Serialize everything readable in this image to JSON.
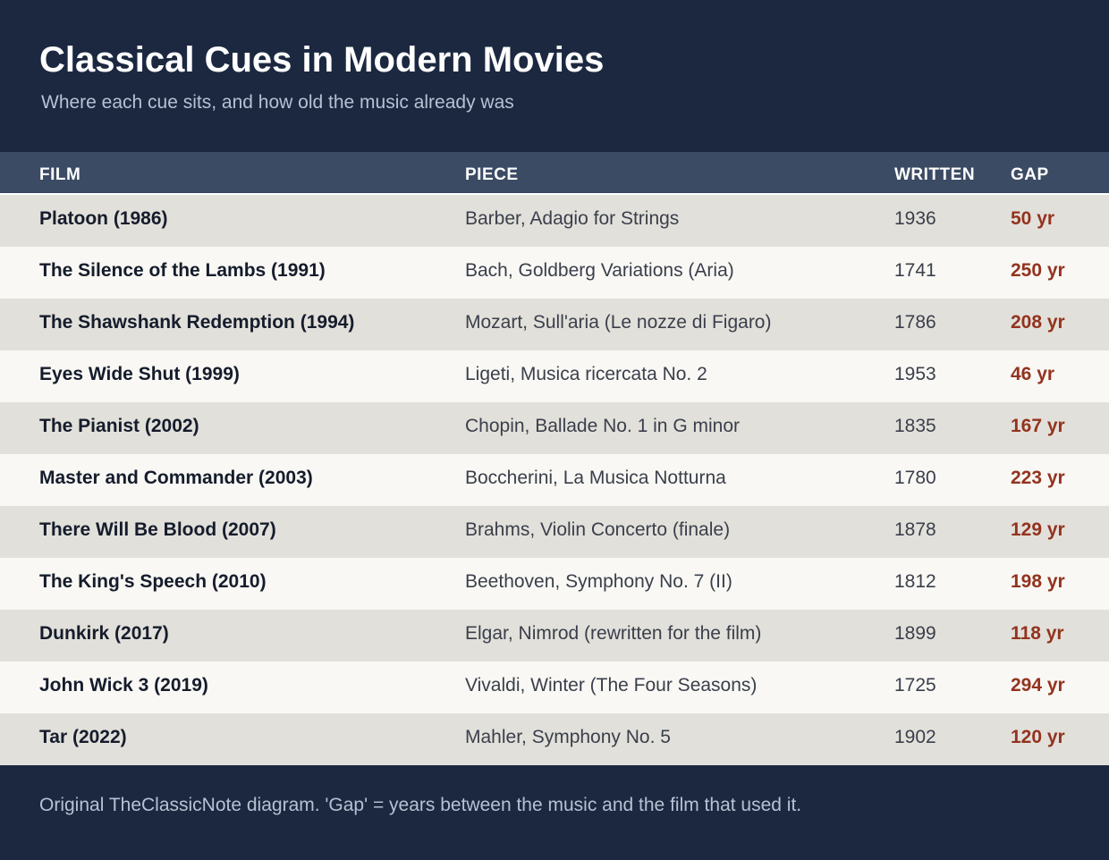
{
  "title": "Classical Cues in Modern Movies",
  "subtitle": "Where each cue sits, and how old the music already was",
  "columns": {
    "film": "FILM",
    "piece": "PIECE",
    "written": "WRITTEN",
    "gap": "GAP"
  },
  "rows": [
    {
      "film": "Platoon (1986)",
      "piece": "Barber, Adagio for Strings",
      "written": "1936",
      "gap": "50 yr"
    },
    {
      "film": "The Silence of the Lambs (1991)",
      "piece": "Bach, Goldberg Variations (Aria)",
      "written": "1741",
      "gap": "250 yr"
    },
    {
      "film": "The Shawshank Redemption (1994)",
      "piece": "Mozart, Sull'aria (Le nozze di Figaro)",
      "written": "1786",
      "gap": "208 yr"
    },
    {
      "film": "Eyes Wide Shut (1999)",
      "piece": "Ligeti, Musica ricercata No. 2",
      "written": "1953",
      "gap": "46 yr"
    },
    {
      "film": "The Pianist (2002)",
      "piece": "Chopin, Ballade No. 1 in G minor",
      "written": "1835",
      "gap": "167 yr"
    },
    {
      "film": "Master and Commander (2003)",
      "piece": "Boccherini, La Musica Notturna",
      "written": "1780",
      "gap": "223 yr"
    },
    {
      "film": "There Will Be Blood (2007)",
      "piece": "Brahms, Violin Concerto (finale)",
      "written": "1878",
      "gap": "129 yr"
    },
    {
      "film": "The King's Speech (2010)",
      "piece": "Beethoven, Symphony No. 7 (II)",
      "written": "1812",
      "gap": "198 yr"
    },
    {
      "film": "Dunkirk (2017)",
      "piece": "Elgar, Nimrod (rewritten for the film)",
      "written": "1899",
      "gap": "118 yr"
    },
    {
      "film": "John Wick 3 (2019)",
      "piece": "Vivaldi, Winter (The Four Seasons)",
      "written": "1725",
      "gap": "294 yr"
    },
    {
      "film": "Tar (2022)",
      "piece": "Mahler, Symphony No. 5",
      "written": "1902",
      "gap": "120 yr"
    }
  ],
  "footnote": "Original TheClassicNote diagram. 'Gap' = years between the music and the film that used it.",
  "colors": {
    "background": "#1b2840",
    "header_row": "#3c4b64",
    "row_odd": "#e2e0da",
    "row_even": "#f9f8f4",
    "gap_accent": "#93331f"
  }
}
